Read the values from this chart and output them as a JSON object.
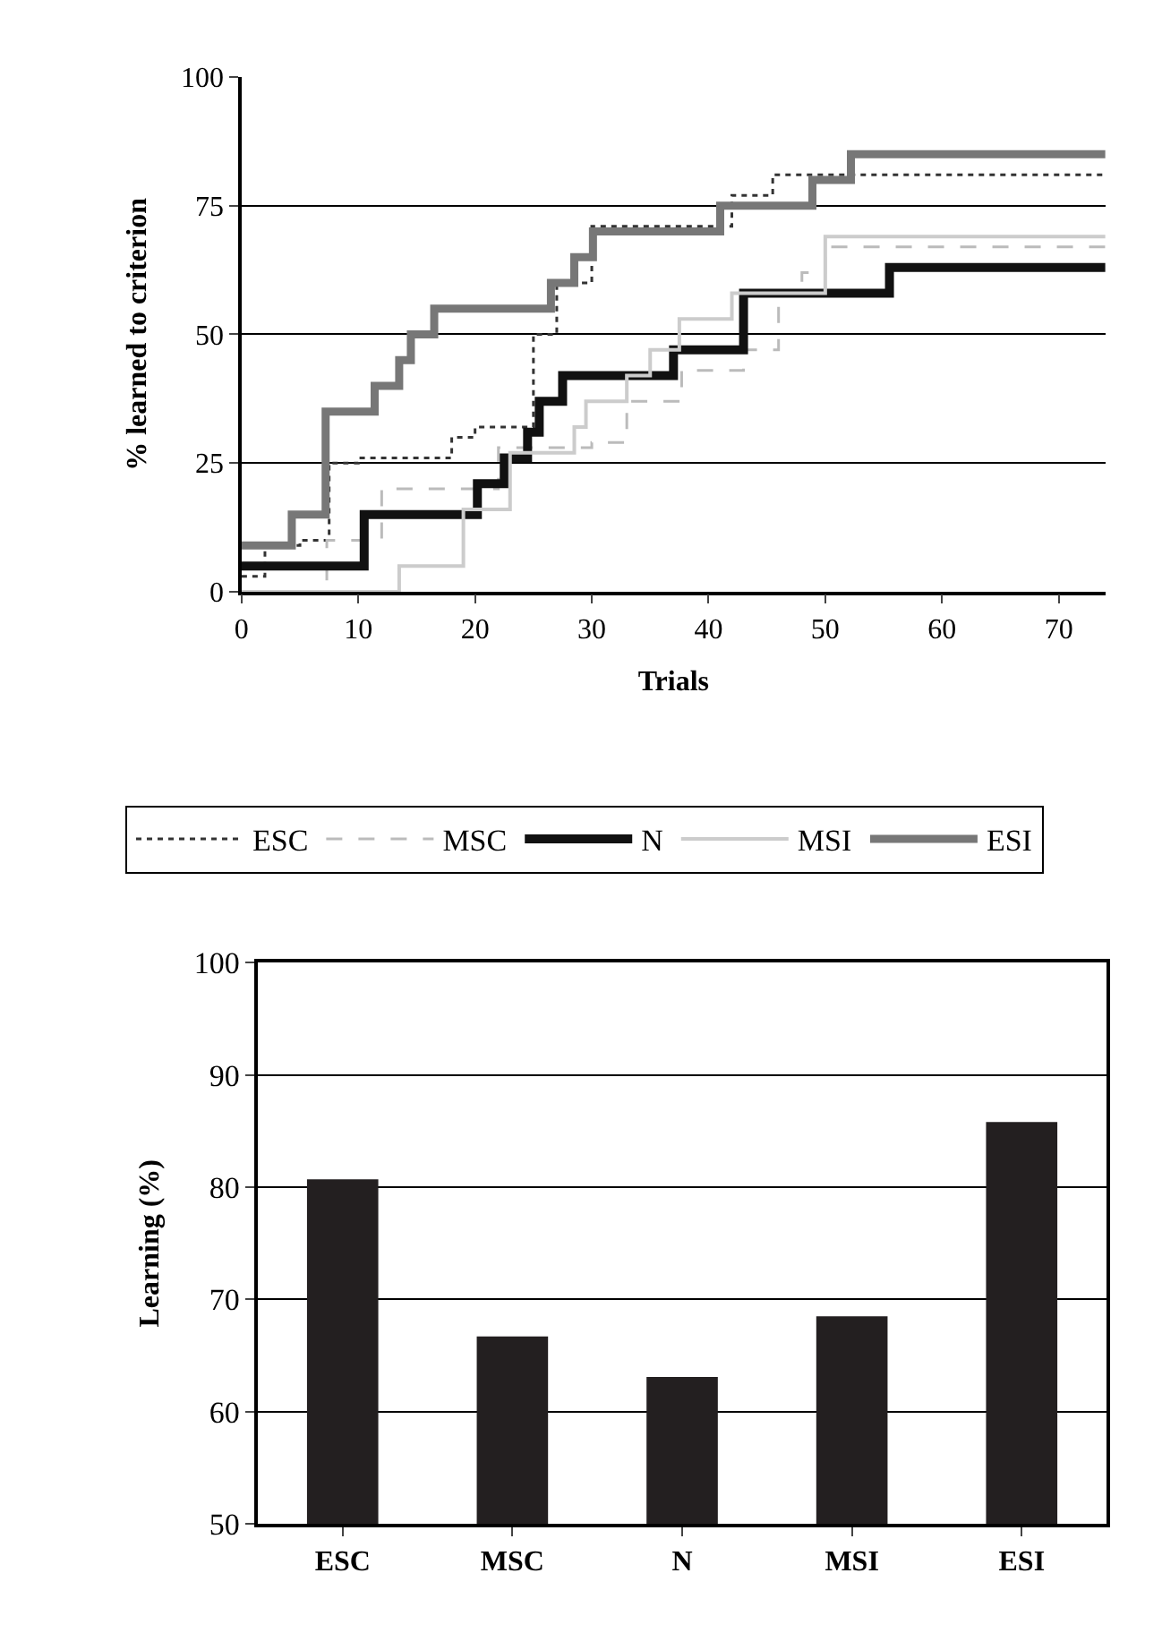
{
  "chart_data": [
    {
      "type": "step",
      "xlabel": "Trials",
      "ylabel": "% learned to criterion",
      "xlim": [
        0,
        74
      ],
      "xticks": [
        0,
        10,
        20,
        30,
        40,
        50,
        60,
        70
      ],
      "ylim": [
        0,
        100
      ],
      "yticks": [
        0,
        25,
        50,
        75,
        100
      ],
      "grid": "y",
      "legend": "bottom",
      "series": [
        {
          "name": "ESC",
          "color": "#333333",
          "line_style": "dotted",
          "x": [
            0,
            2,
            5,
            7.5,
            10,
            18,
            20,
            25,
            27,
            30,
            40,
            42,
            45.5,
            74
          ],
          "values": [
            3,
            9,
            10,
            25,
            26,
            30,
            32,
            50,
            60,
            71,
            71,
            77,
            81,
            81
          ]
        },
        {
          "name": "MSC",
          "color": "#bbbbbb",
          "line_style": "dashed",
          "x": [
            0,
            7.3,
            12,
            22,
            30,
            33,
            37.7,
            43,
            46,
            48,
            50,
            74
          ],
          "values": [
            0,
            10,
            20,
            28,
            29,
            37,
            43,
            47,
            58,
            62,
            67,
            67
          ]
        },
        {
          "name": "N",
          "color": "#111111",
          "line_style": "solid",
          "x": [
            0,
            10.5,
            20.2,
            22.5,
            24.5,
            25.5,
            27.5,
            31.5,
            37,
            43,
            55.5,
            74
          ],
          "values": [
            5,
            15,
            21,
            26,
            31,
            37,
            42,
            42,
            47,
            58,
            63,
            63
          ]
        },
        {
          "name": "MSI",
          "color": "#cccccc",
          "line_style": "solid",
          "x": [
            0,
            13.5,
            19,
            23,
            28.5,
            29.5,
            33,
            35,
            37.5,
            42,
            50,
            74
          ],
          "values": [
            0,
            5,
            16,
            27,
            32,
            37,
            42,
            47,
            53,
            58,
            69,
            69
          ]
        },
        {
          "name": "ESI",
          "color": "#777777",
          "line_style": "solid",
          "x": [
            0,
            4.3,
            7.2,
            11.4,
            13.5,
            14.5,
            16.5,
            26.5,
            28.5,
            30.1,
            41,
            48.9,
            52.2,
            74
          ],
          "values": [
            9,
            15,
            35,
            40,
            45,
            50,
            55,
            60,
            65,
            70,
            75,
            80,
            85,
            85
          ]
        }
      ]
    },
    {
      "type": "bar",
      "ylabel": "Learning (%)",
      "categories": [
        "ESC",
        "MSC",
        "N",
        "MSI",
        "ESI"
      ],
      "values": [
        80.7,
        66.7,
        63.1,
        68.5,
        85.8
      ],
      "color": "#231f20",
      "ylim": [
        50,
        100
      ],
      "yticks": [
        50,
        60,
        70,
        80,
        90,
        100
      ],
      "grid": "y"
    }
  ]
}
